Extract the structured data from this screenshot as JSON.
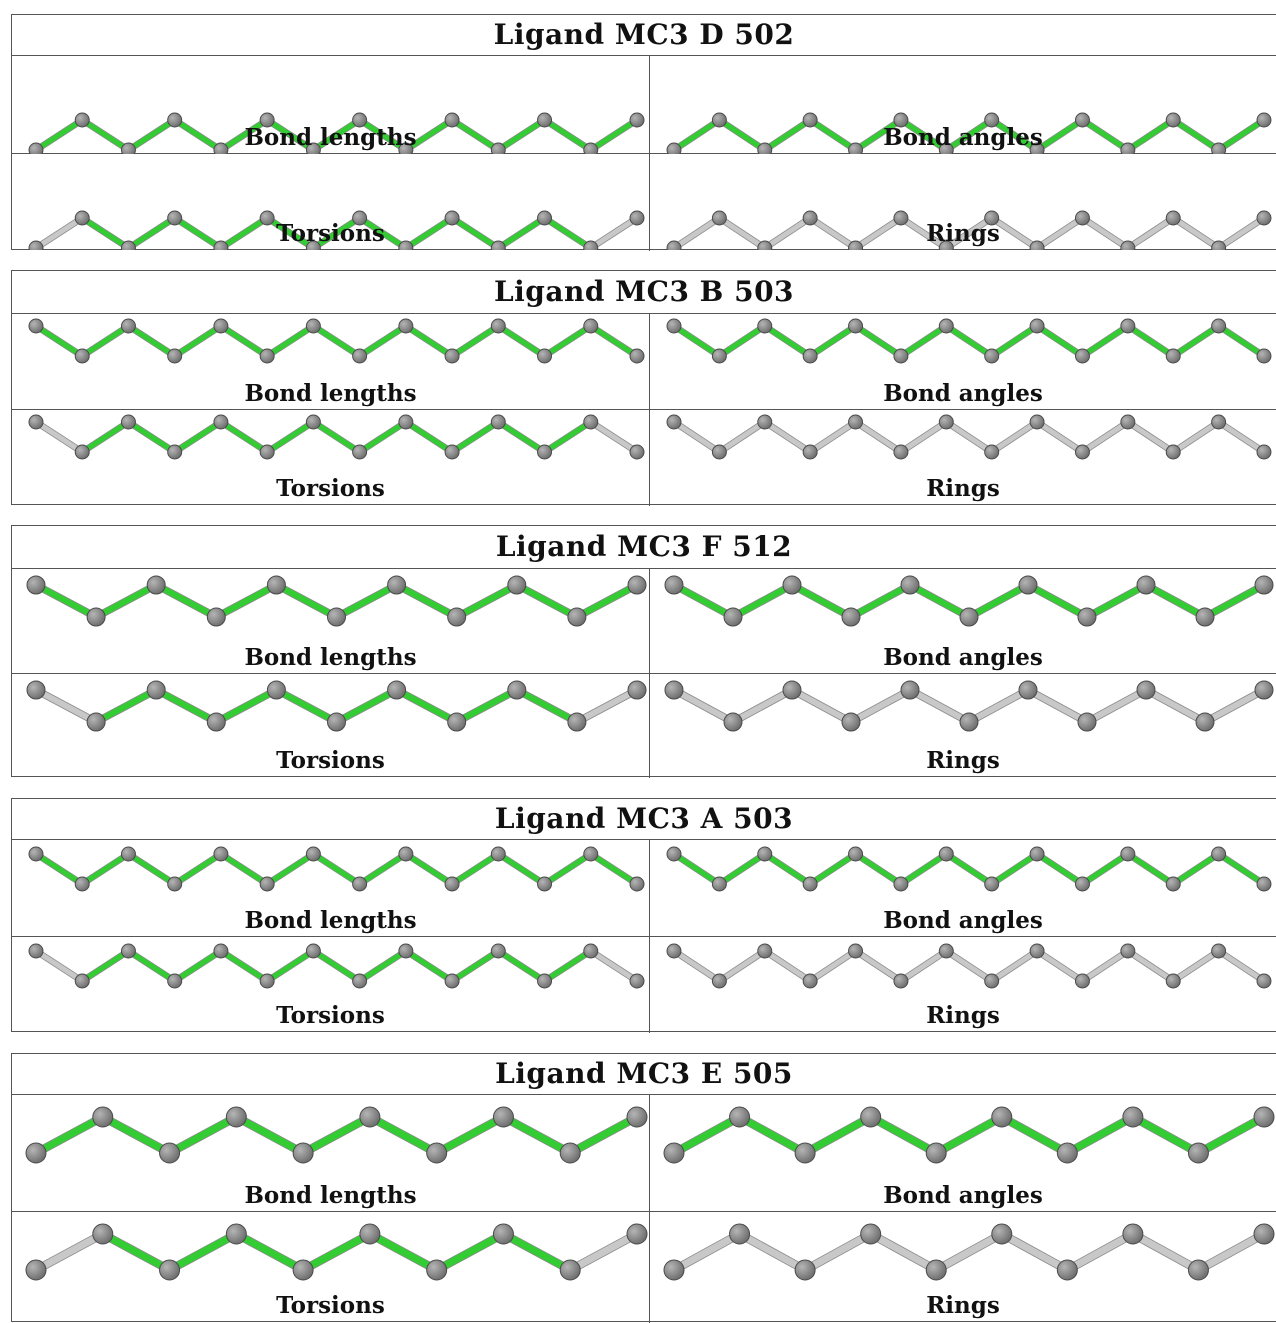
{
  "colors": {
    "highlight": "#33cc33",
    "plain": "#c8c8c8",
    "atom": "#707070"
  },
  "ligands": [
    {
      "title": "Ligand MC3 D 502",
      "panels": [
        {
          "label": "Bond lengths",
          "bonds": [
            "highlight",
            "highlight",
            "highlight",
            "highlight",
            "highlight",
            "highlight",
            "highlight",
            "highlight",
            "highlight",
            "highlight",
            "highlight",
            "highlight",
            "highlight"
          ]
        },
        {
          "label": "Bond angles",
          "bonds": [
            "highlight",
            "highlight",
            "highlight",
            "highlight",
            "highlight",
            "highlight",
            "highlight",
            "highlight",
            "highlight",
            "highlight",
            "highlight",
            "highlight",
            "highlight"
          ]
        },
        {
          "label": "Torsions",
          "bonds": [
            "plain",
            "highlight",
            "highlight",
            "highlight",
            "highlight",
            "highlight",
            "highlight",
            "highlight",
            "highlight",
            "highlight",
            "highlight",
            "highlight",
            "plain"
          ]
        },
        {
          "label": "Rings",
          "bonds": [
            "plain",
            "plain",
            "plain",
            "plain",
            "plain",
            "plain",
            "plain",
            "plain",
            "plain",
            "plain",
            "plain",
            "plain",
            "plain"
          ]
        }
      ]
    },
    {
      "title": "Ligand MC3 B 503",
      "panels": [
        {
          "label": "Bond lengths",
          "bonds": [
            "highlight",
            "highlight",
            "highlight",
            "highlight",
            "highlight",
            "highlight",
            "highlight",
            "highlight",
            "highlight",
            "highlight",
            "highlight",
            "highlight",
            "highlight"
          ]
        },
        {
          "label": "Bond angles",
          "bonds": [
            "highlight",
            "highlight",
            "highlight",
            "highlight",
            "highlight",
            "highlight",
            "highlight",
            "highlight",
            "highlight",
            "highlight",
            "highlight",
            "highlight",
            "highlight"
          ]
        },
        {
          "label": "Torsions",
          "bonds": [
            "plain",
            "highlight",
            "highlight",
            "highlight",
            "highlight",
            "highlight",
            "highlight",
            "highlight",
            "highlight",
            "highlight",
            "highlight",
            "highlight",
            "plain"
          ]
        },
        {
          "label": "Rings",
          "bonds": [
            "plain",
            "plain",
            "plain",
            "plain",
            "plain",
            "plain",
            "plain",
            "plain",
            "plain",
            "plain",
            "plain",
            "plain",
            "plain"
          ]
        }
      ]
    },
    {
      "title": "Ligand MC3 F 512",
      "panels": [
        {
          "label": "Bond lengths",
          "bonds": [
            "highlight",
            "highlight",
            "highlight",
            "highlight",
            "highlight",
            "highlight",
            "highlight",
            "highlight",
            "highlight",
            "highlight"
          ]
        },
        {
          "label": "Bond angles",
          "bonds": [
            "highlight",
            "highlight",
            "highlight",
            "highlight",
            "highlight",
            "highlight",
            "highlight",
            "highlight",
            "highlight",
            "highlight"
          ]
        },
        {
          "label": "Torsions",
          "bonds": [
            "plain",
            "highlight",
            "highlight",
            "highlight",
            "highlight",
            "highlight",
            "highlight",
            "highlight",
            "highlight",
            "plain"
          ]
        },
        {
          "label": "Rings",
          "bonds": [
            "plain",
            "plain",
            "plain",
            "plain",
            "plain",
            "plain",
            "plain",
            "plain",
            "plain",
            "plain"
          ]
        }
      ]
    },
    {
      "title": "Ligand MC3 A 503",
      "panels": [
        {
          "label": "Bond lengths",
          "bonds": [
            "highlight",
            "highlight",
            "highlight",
            "highlight",
            "highlight",
            "highlight",
            "highlight",
            "highlight",
            "highlight",
            "highlight",
            "highlight",
            "highlight",
            "highlight"
          ]
        },
        {
          "label": "Bond angles",
          "bonds": [
            "highlight",
            "highlight",
            "highlight",
            "highlight",
            "highlight",
            "highlight",
            "highlight",
            "highlight",
            "highlight",
            "highlight",
            "highlight",
            "highlight",
            "highlight"
          ]
        },
        {
          "label": "Torsions",
          "bonds": [
            "plain",
            "highlight",
            "highlight",
            "highlight",
            "highlight",
            "highlight",
            "highlight",
            "highlight",
            "highlight",
            "highlight",
            "highlight",
            "highlight",
            "plain"
          ]
        },
        {
          "label": "Rings",
          "bonds": [
            "plain",
            "plain",
            "plain",
            "plain",
            "plain",
            "plain",
            "plain",
            "plain",
            "plain",
            "plain",
            "plain",
            "plain",
            "plain"
          ]
        }
      ]
    },
    {
      "title": "Ligand MC3 E 505",
      "panels": [
        {
          "label": "Bond lengths",
          "bonds": [
            "highlight",
            "highlight",
            "highlight",
            "highlight",
            "highlight",
            "highlight",
            "highlight",
            "highlight",
            "highlight"
          ]
        },
        {
          "label": "Bond angles",
          "bonds": [
            "highlight",
            "highlight",
            "highlight",
            "highlight",
            "highlight",
            "highlight",
            "highlight",
            "highlight",
            "highlight"
          ]
        },
        {
          "label": "Torsions",
          "bonds": [
            "plain",
            "highlight",
            "highlight",
            "highlight",
            "highlight",
            "highlight",
            "highlight",
            "highlight",
            "plain"
          ]
        },
        {
          "label": "Rings",
          "bonds": [
            "plain",
            "plain",
            "plain",
            "plain",
            "plain",
            "plain",
            "plain",
            "plain",
            "plain"
          ]
        }
      ]
    }
  ]
}
